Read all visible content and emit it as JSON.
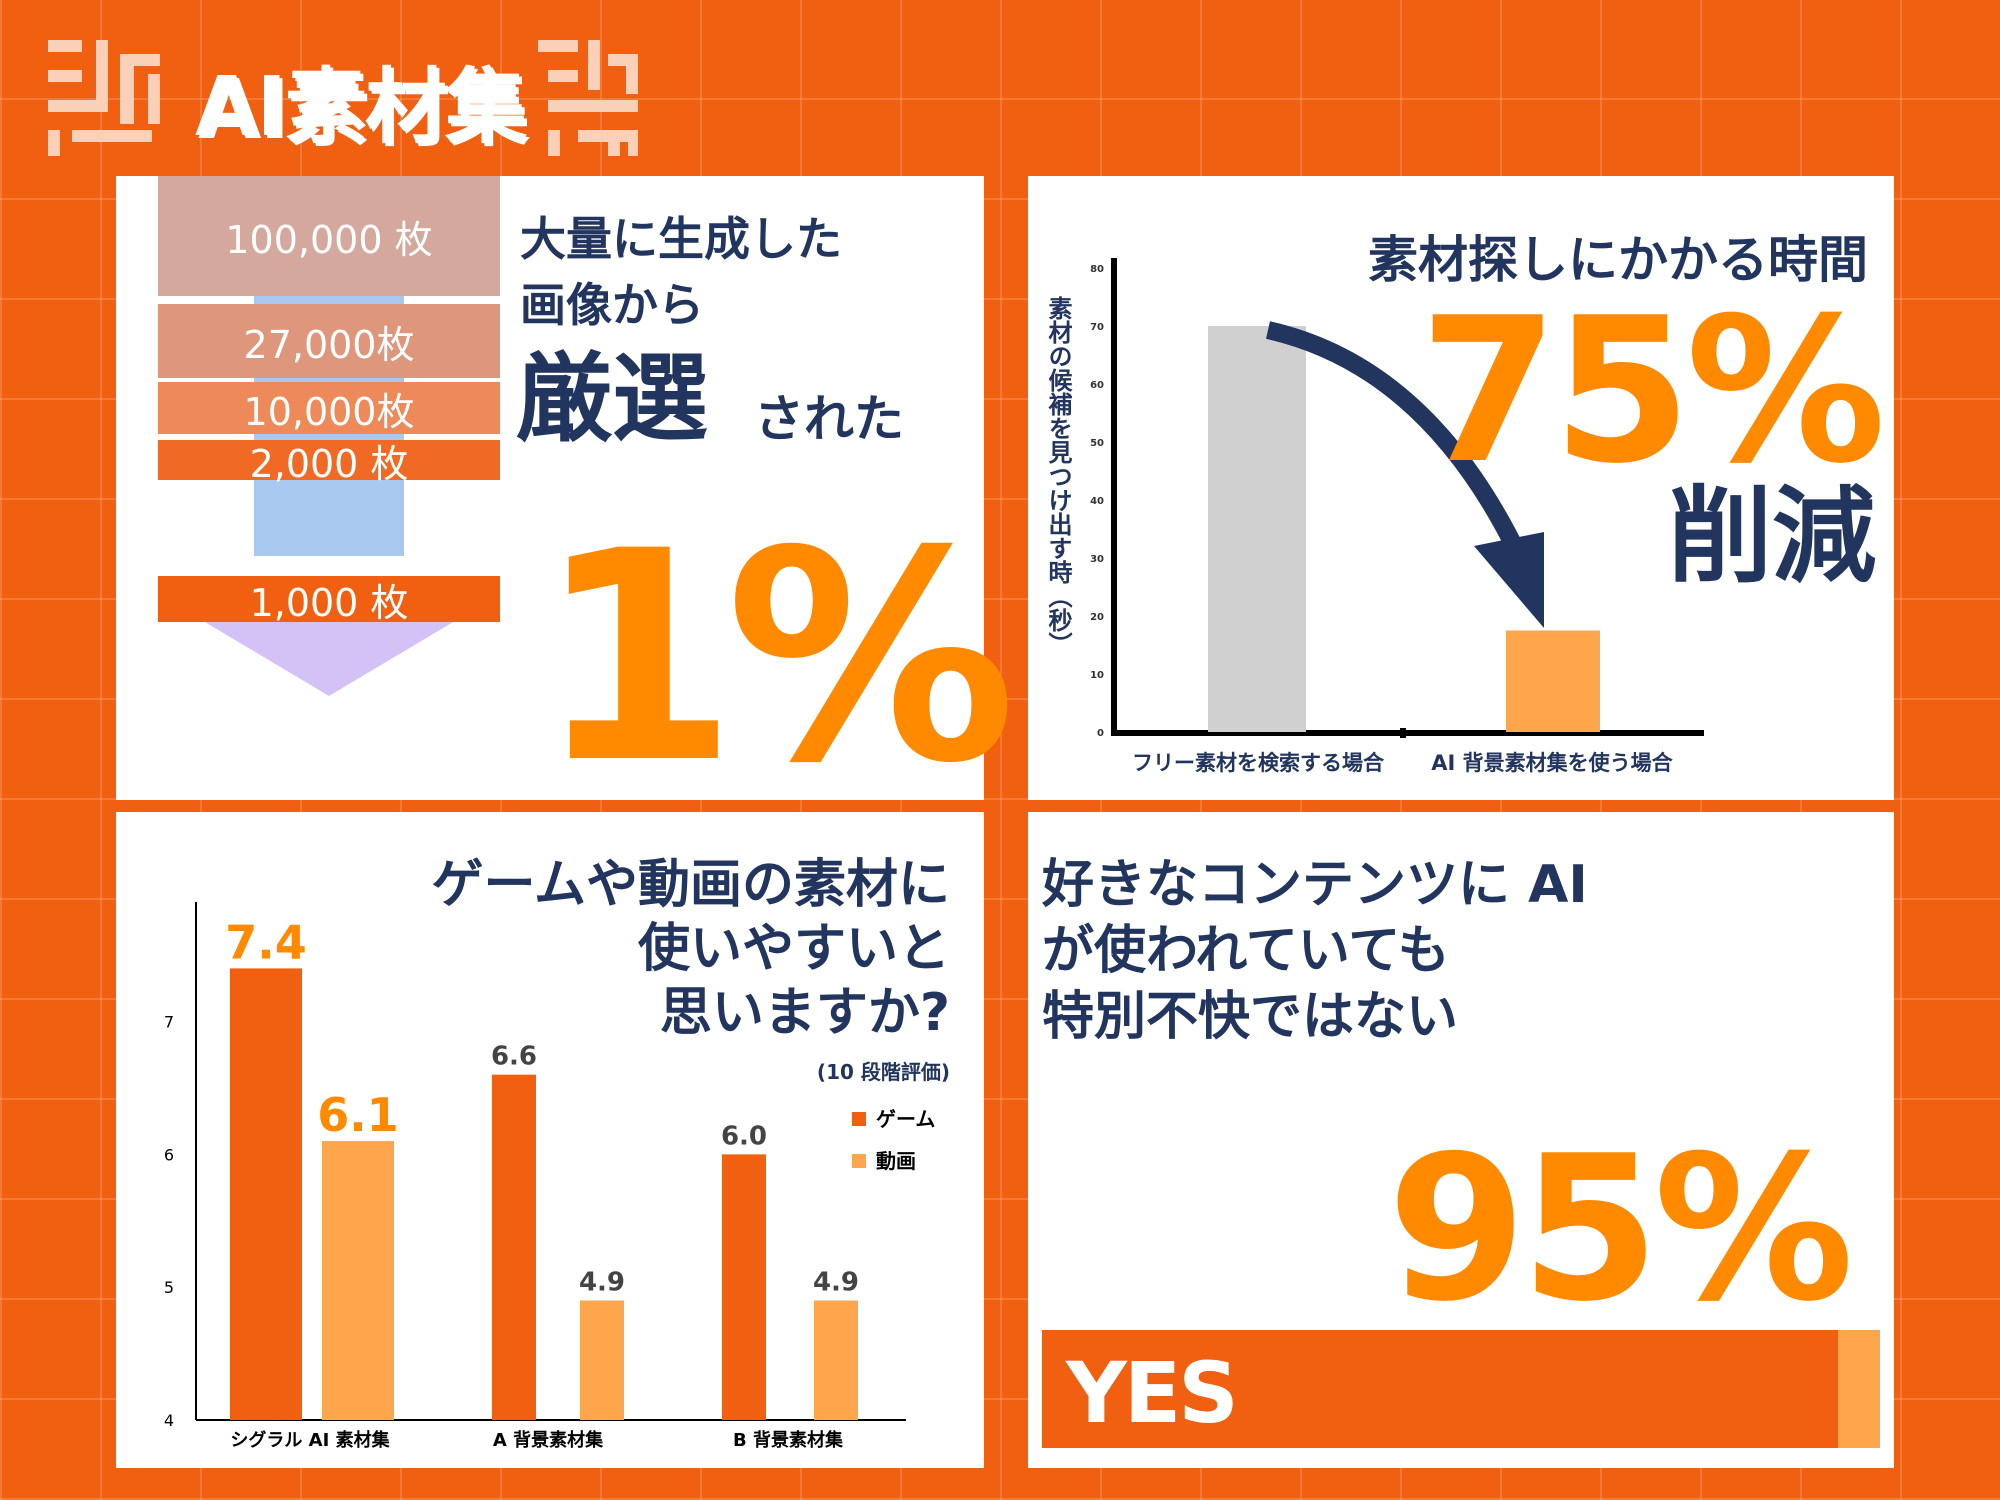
{
  "logo": {
    "text": "AI素材集",
    "color": "#fbd0b8"
  },
  "colors": {
    "background": "#f06010",
    "navy": "#22355e",
    "orange": "#ff8a00",
    "light_orange": "#ffa64d",
    "gray": "#d0d0d0"
  },
  "panel1": {
    "title_line1": "大量に生成した",
    "title_line2": "画像から",
    "title_strong": "厳選",
    "title_tail": "された",
    "big_value": "1%"
  },
  "panel2": {
    "title": "素材探しにかかる時間",
    "big_value": "75%",
    "reduce_label": "削減",
    "ylabel": "素材の候補を見つけ出す時（秒）"
  },
  "panel3": {
    "question_line1": "ゲームや動画の素材に",
    "question_line2": "使いやすいと",
    "question_line3": "思いますか?",
    "note": "(10 段階評価)"
  },
  "panel4": {
    "line1": "好きなコンテンツに AI",
    "line2": "が使われていても",
    "line3": "特別不快ではない",
    "big_value": "95%",
    "bar_label": "YES",
    "bar_fraction": 0.95
  },
  "chart_data": [
    {
      "type": "bar",
      "categories": [
        "100,000 枚",
        "27,000枚",
        "10,000枚",
        "2,000 枚",
        "1,000 枚"
      ],
      "values": [
        100000,
        27000,
        10000,
        2000,
        1000
      ],
      "colors": [
        "#d5a89d",
        "#de967c",
        "#ee8a5a",
        "#f06a26",
        "#f06010"
      ]
    },
    {
      "type": "bar",
      "categories": [
        "フリー素材を検索する場合",
        "AI 背景素材集を使う場合"
      ],
      "values": [
        70,
        17.5
      ],
      "ylim": [
        0,
        80
      ],
      "yticks": [
        0,
        10,
        20,
        30,
        40,
        50,
        60,
        70,
        80
      ],
      "ylabel": "素材の候補を見つけ出す時（秒）",
      "colors": [
        "#d0d0d0",
        "#ffa64d"
      ]
    },
    {
      "type": "bar",
      "categories": [
        "シグラル AI 素材集",
        "A 背景素材集",
        "B 背景素材集"
      ],
      "series": [
        {
          "name": "ゲーム",
          "values": [
            7.4,
            6.6,
            6.0
          ],
          "labels": [
            "7.4",
            "6.6",
            "6.0"
          ],
          "color": "#f06010"
        },
        {
          "name": "動画",
          "values": [
            6.1,
            4.9,
            4.9
          ],
          "labels": [
            "6.1",
            "4.9",
            "4.9"
          ],
          "color": "#ffa64d"
        }
      ],
      "ylim": [
        4,
        7.9
      ],
      "yticks": [
        4,
        5,
        6,
        7
      ],
      "legend": "right"
    }
  ]
}
